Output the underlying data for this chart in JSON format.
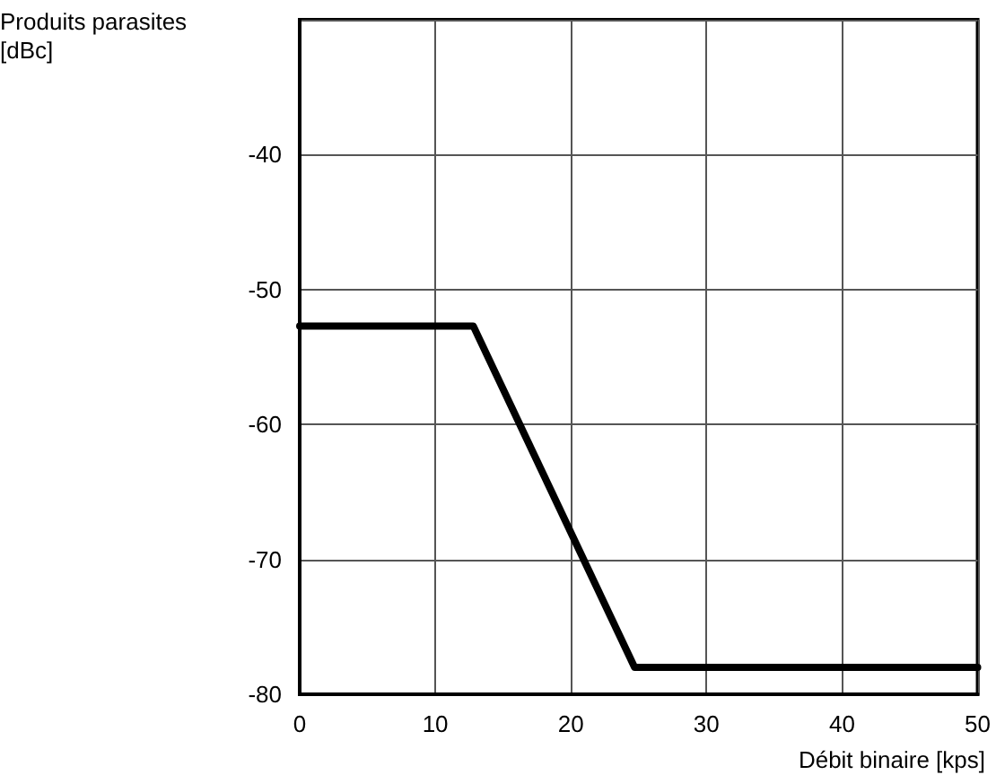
{
  "chart_data": {
    "type": "line",
    "ylabel": "Produits parasites\n[dBc]",
    "xlabel": "Débit binaire [kps]",
    "series": [
      {
        "color": "#000000",
        "x": [
          0,
          12.8,
          24.7,
          50
        ],
        "values": [
          -52.7,
          -52.7,
          -78,
          -78
        ]
      }
    ],
    "xlim": [
      0,
      50
    ],
    "xticks": [
      0,
      10,
      20,
      30,
      40,
      50
    ],
    "ylim": [
      -80,
      -30
    ],
    "yticks": [
      -80,
      -70,
      -60,
      -50,
      -40,
      {
        "value": -30,
        "label": null
      }
    ],
    "grid": true,
    "marker": "none",
    "line_style": "solid"
  }
}
